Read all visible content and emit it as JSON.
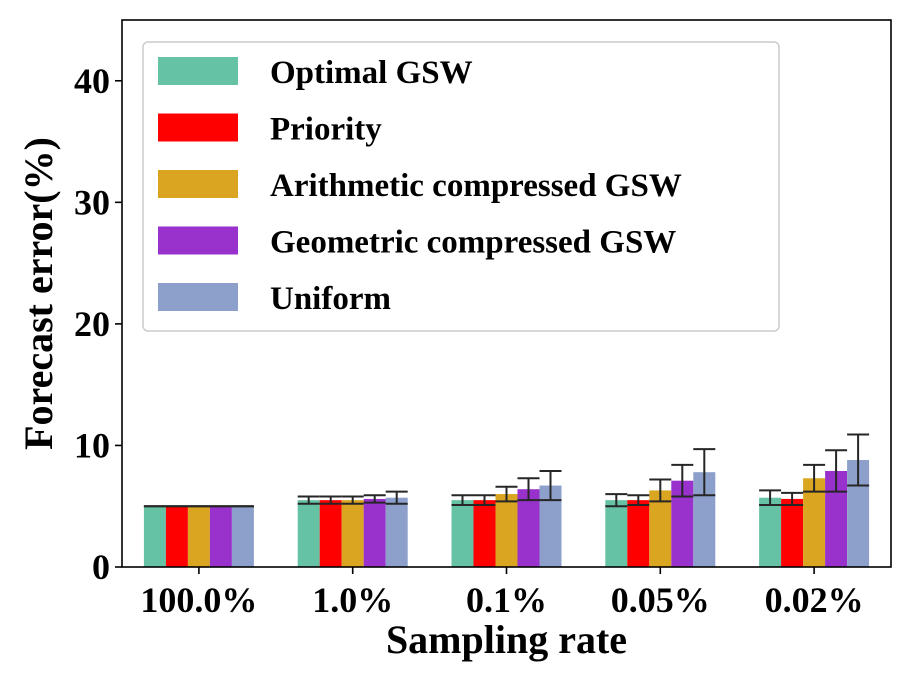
{
  "chart_data": {
    "type": "bar",
    "title": "",
    "xlabel": "Sampling rate",
    "ylabel": "Forecast error(%)",
    "ylim": [
      0,
      45
    ],
    "yticks": [
      0,
      10,
      20,
      30,
      40
    ],
    "ytick_labels": [
      "0",
      "10",
      "20",
      "30",
      "40"
    ],
    "categories": [
      "100.0%",
      "1.0%",
      "0.1%",
      "0.05%",
      "0.02%"
    ],
    "legend_position": "upper-left",
    "series": [
      {
        "name": "Optimal GSW",
        "color": "#66c2a5",
        "values": [
          5.0,
          5.5,
          5.5,
          5.5,
          5.7
        ],
        "errors": [
          0.0,
          0.3,
          0.4,
          0.5,
          0.6
        ]
      },
      {
        "name": "Priority",
        "color": "#ff0000",
        "values": [
          5.0,
          5.5,
          5.5,
          5.5,
          5.6
        ],
        "errors": [
          0.0,
          0.3,
          0.4,
          0.4,
          0.5
        ]
      },
      {
        "name": "Arithmetic compressed GSW",
        "color": "#daa520",
        "values": [
          5.0,
          5.5,
          6.0,
          6.3,
          7.3
        ],
        "errors": [
          0.0,
          0.3,
          0.6,
          0.9,
          1.1
        ]
      },
      {
        "name": "Geometric compressed GSW",
        "color": "#9932cc",
        "values": [
          5.0,
          5.6,
          6.4,
          7.1,
          7.9
        ],
        "errors": [
          0.0,
          0.3,
          0.9,
          1.3,
          1.7
        ]
      },
      {
        "name": "Uniform",
        "color": "#8da0cb",
        "values": [
          5.0,
          5.7,
          6.7,
          7.8,
          8.8
        ],
        "errors": [
          0.0,
          0.5,
          1.2,
          1.9,
          2.1
        ]
      }
    ]
  }
}
